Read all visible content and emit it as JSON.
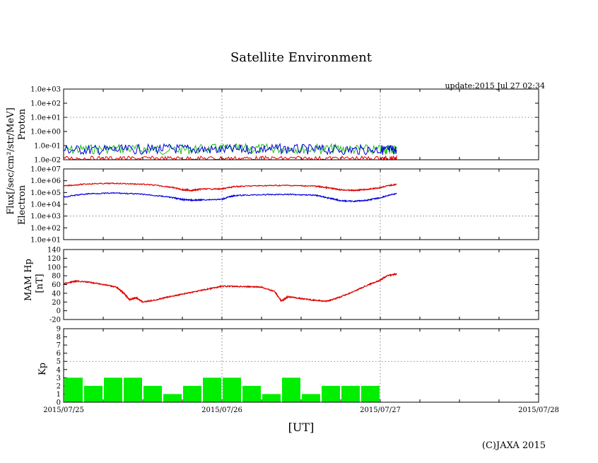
{
  "chart_data": [
    {
      "type": "line",
      "panel": "proton",
      "title": "Satellite Environment",
      "update_text": "update:2015 Jul 27 02:34",
      "ylabel_shared": "Flux[/sec/cm²/str/MeV]",
      "ylabel": "Proton",
      "yscale": "log",
      "ylim": [
        0.01,
        1000
      ],
      "yticks": [
        "1.0e-02",
        "1.0e-01",
        "1.0e+00",
        "1.0e+01",
        "1.0e+02",
        "1.0e+03"
      ],
      "x_hours": [
        0,
        8,
        16,
        24,
        32,
        40,
        48,
        50.5
      ],
      "series": [
        {
          "name": "green",
          "color": "#22bb22",
          "values": [
            0.05,
            0.06,
            0.05,
            0.06,
            0.06,
            0.06,
            0.05,
            0.06
          ]
        },
        {
          "name": "blue",
          "color": "#0000dd",
          "values": [
            0.05,
            0.05,
            0.06,
            0.05,
            0.06,
            0.05,
            0.05,
            0.05
          ]
        },
        {
          "name": "red",
          "color": "#dd0000",
          "values": [
            0.02,
            0.02,
            0.02,
            0.02,
            0.02,
            0.02,
            0.02,
            0.02
          ]
        }
      ]
    },
    {
      "type": "line",
      "panel": "electron",
      "ylabel": "Electron",
      "yscale": "log",
      "ylim": [
        10,
        10000000
      ],
      "yticks": [
        "1.0e+01",
        "1.0e+02",
        "1.0e+03",
        "1.0e+04",
        "1.0e+05",
        "1.0e+06",
        "1.0e+07"
      ],
      "x_hours": [
        0,
        4,
        8,
        12,
        16,
        18,
        19.5,
        21,
        24,
        26,
        30,
        34,
        38,
        40,
        42,
        44,
        46,
        48,
        50.5
      ],
      "series": [
        {
          "name": "red",
          "color": "#dd0000",
          "values": [
            350000,
            550000,
            600000,
            500000,
            300000,
            170000,
            150000,
            200000,
            200000,
            320000,
            380000,
            400000,
            350000,
            250000,
            170000,
            150000,
            180000,
            260000,
            500000
          ]
        },
        {
          "name": "blue",
          "color": "#0000dd",
          "values": [
            40000,
            80000,
            90000,
            70000,
            40000,
            25000,
            22000,
            24000,
            26000,
            55000,
            65000,
            70000,
            60000,
            35000,
            20000,
            18000,
            22000,
            35000,
            80000
          ]
        }
      ]
    },
    {
      "type": "line",
      "panel": "mam_hp",
      "ylabel": "MAM Hp",
      "ylabel2": "[nT]",
      "ylim": [
        -20,
        140
      ],
      "yticks": [
        "-20",
        "0",
        "20",
        "40",
        "60",
        "80",
        "100",
        "120",
        "140"
      ],
      "x_hours": [
        0,
        2,
        4,
        6,
        8,
        9,
        10,
        11,
        12,
        14,
        16,
        18,
        20,
        22,
        24,
        26,
        28,
        30,
        32,
        33,
        34,
        36,
        38,
        40,
        42,
        44,
        46,
        48,
        49,
        50.5
      ],
      "series": [
        {
          "name": "Hp",
          "color": "#dd0000",
          "values": [
            62,
            68,
            65,
            60,
            54,
            42,
            25,
            30,
            20,
            25,
            32,
            38,
            44,
            50,
            56,
            56,
            55,
            54,
            44,
            22,
            32,
            28,
            24,
            22,
            32,
            44,
            58,
            70,
            80,
            84
          ]
        }
      ]
    },
    {
      "type": "bar",
      "panel": "kp",
      "ylabel": "Kp",
      "ylim": [
        0,
        9
      ],
      "yticks": [
        "0",
        "1",
        "2",
        "3",
        "4",
        "5",
        "6",
        "7",
        "8",
        "9"
      ],
      "bar_color": "#00ee00",
      "bar_hours": 3,
      "values": [
        3,
        2,
        3,
        3,
        2,
        1,
        2,
        3,
        3,
        2,
        1,
        3,
        1,
        2,
        2,
        2
      ],
      "xlim_hours": [
        0,
        72
      ],
      "xticks": [
        "2015/07/25",
        "2015/07/26",
        "2015/07/27",
        "2015/07/28"
      ],
      "xlabel": "[UT]"
    }
  ],
  "footer": {
    "copyright": "(C)JAXA 2015"
  }
}
